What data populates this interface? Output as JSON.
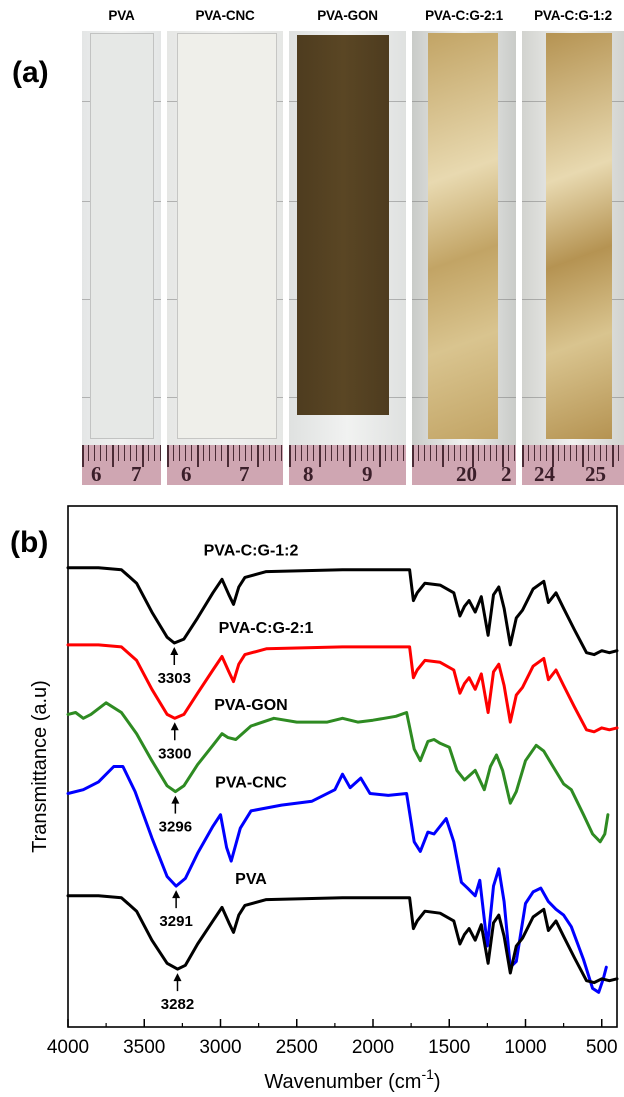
{
  "panel_a": {
    "label": "(a)",
    "strips": [
      {
        "title": "PVA",
        "film_color": "#e6e8e6",
        "bg_color": "#e4e6e6",
        "ruler_numbers": [
          "6",
          "7"
        ]
      },
      {
        "title": "PVA-CNC",
        "film_color": "#efefea",
        "bg_color": "#e6e7e5",
        "ruler_numbers": [
          "6",
          "7"
        ]
      },
      {
        "title": "PVA-GON",
        "film_color": "#5a4624",
        "bg_color": "#dfe1e0",
        "ruler_numbers": [
          "8",
          "9"
        ]
      },
      {
        "title": "PVA-C:G-2:1",
        "film_color": "#c2a465",
        "bg_color": "#c9cbc8",
        "ruler_numbers": [
          "",
          "20",
          "2"
        ]
      },
      {
        "title": "PVA-C:G-1:2",
        "film_color": "#b59352",
        "bg_color": "#d2d3cf",
        "ruler_numbers": [
          "24",
          "25"
        ]
      }
    ]
  },
  "panel_b": {
    "label": "(b)"
  },
  "chart_data": {
    "type": "line",
    "title": "",
    "xlabel": "Wavenumber (cm",
    "xlabel_superscript": "-1",
    "xlabel_suffix": ")",
    "ylabel": "Transmittance (a.u)",
    "xlim": [
      4000,
      400
    ],
    "x_reversed": true,
    "xticks": [
      4000,
      3500,
      3000,
      2500,
      2000,
      1500,
      1000,
      500
    ],
    "grid": false,
    "legend": "none",
    "series": [
      {
        "name": "PVA-C:G-1:2",
        "color": "#000000",
        "offset": 4,
        "peak_label": "3303",
        "peak_x": 3303,
        "points": [
          [
            4000,
            0
          ],
          [
            3800,
            0
          ],
          [
            3650,
            -0.1
          ],
          [
            3550,
            -0.8
          ],
          [
            3450,
            -2.3
          ],
          [
            3350,
            -3.6
          ],
          [
            3303,
            -3.9
          ],
          [
            3240,
            -3.7
          ],
          [
            3150,
            -2.6
          ],
          [
            3050,
            -1.3
          ],
          [
            2990,
            -0.6
          ],
          [
            2945,
            -1.4
          ],
          [
            2915,
            -1.9
          ],
          [
            2880,
            -1.0
          ],
          [
            2840,
            -0.5
          ],
          [
            2700,
            -0.2
          ],
          [
            2200,
            -0.1
          ],
          [
            1900,
            -0.1
          ],
          [
            1760,
            -0.1
          ],
          [
            1735,
            -1.7
          ],
          [
            1710,
            -1.3
          ],
          [
            1660,
            -0.8
          ],
          [
            1560,
            -0.9
          ],
          [
            1470,
            -1.3
          ],
          [
            1430,
            -2.5
          ],
          [
            1400,
            -2.0
          ],
          [
            1370,
            -1.7
          ],
          [
            1330,
            -2.3
          ],
          [
            1290,
            -1.5
          ],
          [
            1245,
            -3.5
          ],
          [
            1210,
            -1.4
          ],
          [
            1175,
            -1.0
          ],
          [
            1140,
            -2.1
          ],
          [
            1100,
            -4.0
          ],
          [
            1060,
            -2.6
          ],
          [
            1020,
            -2.2
          ],
          [
            950,
            -1.1
          ],
          [
            880,
            -0.7
          ],
          [
            850,
            -1.8
          ],
          [
            800,
            -1.3
          ],
          [
            750,
            -2.1
          ],
          [
            680,
            -3.2
          ],
          [
            600,
            -4.4
          ],
          [
            550,
            -4.5
          ],
          [
            500,
            -4.3
          ],
          [
            450,
            -4.4
          ],
          [
            400,
            -4.3
          ]
        ]
      },
      {
        "name": "PVA-C:G-2:1",
        "color": "#ff0000",
        "offset": 0,
        "peak_label": "3300",
        "peak_x": 3300,
        "points": [
          [
            4000,
            0
          ],
          [
            3800,
            0
          ],
          [
            3650,
            -0.1
          ],
          [
            3550,
            -0.8
          ],
          [
            3450,
            -2.3
          ],
          [
            3350,
            -3.6
          ],
          [
            3300,
            -3.8
          ],
          [
            3240,
            -3.6
          ],
          [
            3150,
            -2.5
          ],
          [
            3050,
            -1.3
          ],
          [
            2990,
            -0.6
          ],
          [
            2945,
            -1.4
          ],
          [
            2915,
            -1.9
          ],
          [
            2880,
            -1.0
          ],
          [
            2840,
            -0.5
          ],
          [
            2700,
            -0.2
          ],
          [
            2200,
            -0.1
          ],
          [
            1900,
            -0.1
          ],
          [
            1760,
            -0.1
          ],
          [
            1735,
            -1.7
          ],
          [
            1710,
            -1.3
          ],
          [
            1660,
            -0.8
          ],
          [
            1560,
            -0.9
          ],
          [
            1470,
            -1.3
          ],
          [
            1430,
            -2.5
          ],
          [
            1400,
            -2.0
          ],
          [
            1370,
            -1.7
          ],
          [
            1330,
            -2.3
          ],
          [
            1290,
            -1.5
          ],
          [
            1245,
            -3.5
          ],
          [
            1210,
            -1.4
          ],
          [
            1175,
            -1.0
          ],
          [
            1140,
            -2.1
          ],
          [
            1100,
            -4.0
          ],
          [
            1060,
            -2.6
          ],
          [
            1020,
            -2.2
          ],
          [
            950,
            -1.1
          ],
          [
            880,
            -0.7
          ],
          [
            850,
            -1.8
          ],
          [
            800,
            -1.3
          ],
          [
            750,
            -2.1
          ],
          [
            680,
            -3.2
          ],
          [
            600,
            -4.4
          ],
          [
            550,
            -4.5
          ],
          [
            500,
            -4.3
          ],
          [
            450,
            -4.4
          ],
          [
            400,
            -4.3
          ]
        ]
      },
      {
        "name": "PVA-GON",
        "color": "#2e8b22",
        "offset": -4,
        "peak_label": "3296",
        "peak_x": 3296,
        "points": [
          [
            4000,
            0.4
          ],
          [
            3950,
            0.5
          ],
          [
            3900,
            0.2
          ],
          [
            3850,
            0.4
          ],
          [
            3750,
            1.0
          ],
          [
            3650,
            0.5
          ],
          [
            3550,
            -0.6
          ],
          [
            3450,
            -2.0
          ],
          [
            3350,
            -3.3
          ],
          [
            3296,
            -3.6
          ],
          [
            3240,
            -3.3
          ],
          [
            3150,
            -2.2
          ],
          [
            3050,
            -1.2
          ],
          [
            2990,
            -0.6
          ],
          [
            2950,
            -0.8
          ],
          [
            2900,
            -0.9
          ],
          [
            2800,
            -0.2
          ],
          [
            2650,
            0.2
          ],
          [
            2500,
            0.0
          ],
          [
            2300,
            0.0
          ],
          [
            2200,
            0.2
          ],
          [
            2100,
            0.0
          ],
          [
            2000,
            0.1
          ],
          [
            1850,
            0.3
          ],
          [
            1780,
            0.5
          ],
          [
            1730,
            -1.4
          ],
          [
            1690,
            -2.0
          ],
          [
            1640,
            -1.0
          ],
          [
            1600,
            -0.9
          ],
          [
            1560,
            -1.1
          ],
          [
            1500,
            -1.3
          ],
          [
            1450,
            -2.5
          ],
          [
            1400,
            -3.0
          ],
          [
            1330,
            -2.5
          ],
          [
            1270,
            -3.5
          ],
          [
            1230,
            -2.3
          ],
          [
            1190,
            -1.7
          ],
          [
            1150,
            -2.5
          ],
          [
            1100,
            -4.2
          ],
          [
            1060,
            -3.6
          ],
          [
            1000,
            -2.0
          ],
          [
            930,
            -1.2
          ],
          [
            880,
            -1.5
          ],
          [
            820,
            -2.3
          ],
          [
            750,
            -3.2
          ],
          [
            700,
            -3.5
          ],
          [
            620,
            -4.8
          ],
          [
            560,
            -5.8
          ],
          [
            510,
            -6.2
          ],
          [
            480,
            -5.8
          ],
          [
            460,
            -4.8
          ]
        ]
      },
      {
        "name": "PVA-CNC",
        "color": "#0000ff",
        "offset": -8,
        "peak_label": "3291",
        "peak_x": 3291,
        "points": [
          [
            4000,
            0.3
          ],
          [
            3900,
            0.5
          ],
          [
            3800,
            0.9
          ],
          [
            3700,
            1.7
          ],
          [
            3640,
            1.7
          ],
          [
            3560,
            0.4
          ],
          [
            3450,
            -2.0
          ],
          [
            3350,
            -4.0
          ],
          [
            3291,
            -4.5
          ],
          [
            3230,
            -4.1
          ],
          [
            3150,
            -2.8
          ],
          [
            3050,
            -1.4
          ],
          [
            3000,
            -0.8
          ],
          [
            2960,
            -2.5
          ],
          [
            2930,
            -3.2
          ],
          [
            2870,
            -1.5
          ],
          [
            2800,
            -0.6
          ],
          [
            2600,
            -0.3
          ],
          [
            2400,
            -0.1
          ],
          [
            2250,
            0.5
          ],
          [
            2200,
            1.3
          ],
          [
            2150,
            0.6
          ],
          [
            2080,
            1.1
          ],
          [
            2020,
            0.3
          ],
          [
            1900,
            0.2
          ],
          [
            1780,
            0.3
          ],
          [
            1730,
            -2.2
          ],
          [
            1690,
            -2.7
          ],
          [
            1640,
            -1.7
          ],
          [
            1600,
            -1.8
          ],
          [
            1520,
            -1.0
          ],
          [
            1470,
            -2.2
          ],
          [
            1420,
            -4.3
          ],
          [
            1380,
            -4.6
          ],
          [
            1330,
            -5.0
          ],
          [
            1300,
            -4.2
          ],
          [
            1250,
            -7.6
          ],
          [
            1210,
            -4.5
          ],
          [
            1175,
            -3.6
          ],
          [
            1140,
            -5.3
          ],
          [
            1100,
            -8.7
          ],
          [
            1060,
            -8.4
          ],
          [
            1000,
            -5.4
          ],
          [
            950,
            -4.8
          ],
          [
            900,
            -4.6
          ],
          [
            850,
            -5.3
          ],
          [
            800,
            -5.7
          ],
          [
            750,
            -6.0
          ],
          [
            700,
            -6.6
          ],
          [
            620,
            -8.3
          ],
          [
            560,
            -9.8
          ],
          [
            520,
            -10.0
          ],
          [
            490,
            -9.3
          ],
          [
            470,
            -8.7
          ]
        ]
      },
      {
        "name": "PVA",
        "color": "#000000",
        "offset": -13,
        "peak_label": "3282",
        "peak_x": 3282,
        "points": [
          [
            4000,
            0
          ],
          [
            3800,
            0
          ],
          [
            3650,
            -0.1
          ],
          [
            3550,
            -0.8
          ],
          [
            3450,
            -2.3
          ],
          [
            3350,
            -3.5
          ],
          [
            3282,
            -3.8
          ],
          [
            3230,
            -3.6
          ],
          [
            3150,
            -2.5
          ],
          [
            3050,
            -1.3
          ],
          [
            2990,
            -0.6
          ],
          [
            2945,
            -1.4
          ],
          [
            2915,
            -1.9
          ],
          [
            2880,
            -1.0
          ],
          [
            2840,
            -0.5
          ],
          [
            2700,
            -0.2
          ],
          [
            2200,
            -0.1
          ],
          [
            1900,
            -0.1
          ],
          [
            1760,
            -0.1
          ],
          [
            1735,
            -1.7
          ],
          [
            1710,
            -1.3
          ],
          [
            1660,
            -0.8
          ],
          [
            1560,
            -0.9
          ],
          [
            1470,
            -1.3
          ],
          [
            1430,
            -2.5
          ],
          [
            1400,
            -2.0
          ],
          [
            1370,
            -1.7
          ],
          [
            1330,
            -2.3
          ],
          [
            1290,
            -1.5
          ],
          [
            1245,
            -3.5
          ],
          [
            1210,
            -1.4
          ],
          [
            1175,
            -1.0
          ],
          [
            1140,
            -2.1
          ],
          [
            1100,
            -4.0
          ],
          [
            1060,
            -2.6
          ],
          [
            1020,
            -2.2
          ],
          [
            950,
            -1.1
          ],
          [
            880,
            -0.7
          ],
          [
            850,
            -1.8
          ],
          [
            800,
            -1.3
          ],
          [
            750,
            -2.1
          ],
          [
            680,
            -3.2
          ],
          [
            600,
            -4.4
          ],
          [
            550,
            -4.5
          ],
          [
            500,
            -4.3
          ],
          [
            450,
            -4.4
          ],
          [
            400,
            -4.3
          ]
        ]
      }
    ]
  }
}
